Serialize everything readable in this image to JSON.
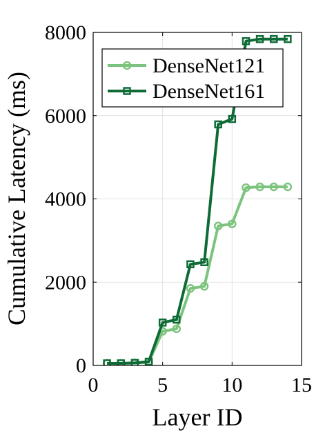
{
  "chart_data": {
    "type": "line",
    "xlabel": "Layer ID",
    "ylabel": "Cumulative Latency (ms)",
    "xlim": [
      0,
      15
    ],
    "ylim": [
      0,
      8000
    ],
    "xticks": [
      0,
      5,
      10,
      15
    ],
    "yticks": [
      0,
      2000,
      4000,
      6000,
      8000
    ],
    "grid": true,
    "legend_position": "top-left",
    "series": [
      {
        "name": "DenseNet121",
        "color": "#7cc47e",
        "marker": "circle",
        "x": [
          1,
          2,
          3,
          4,
          5,
          6,
          7,
          8,
          9,
          10,
          11,
          12,
          13,
          14
        ],
        "values": [
          50,
          50,
          60,
          80,
          820,
          880,
          1850,
          1900,
          3350,
          3400,
          4270,
          4290,
          4290,
          4290
        ]
      },
      {
        "name": "DenseNet161",
        "color": "#0e6b36",
        "marker": "square",
        "x": [
          1,
          2,
          3,
          4,
          5,
          6,
          7,
          8,
          9,
          10,
          11,
          12,
          13,
          14
        ],
        "values": [
          50,
          50,
          60,
          90,
          1030,
          1100,
          2430,
          2480,
          5790,
          5920,
          7790,
          7840,
          7840,
          7840
        ]
      }
    ]
  }
}
